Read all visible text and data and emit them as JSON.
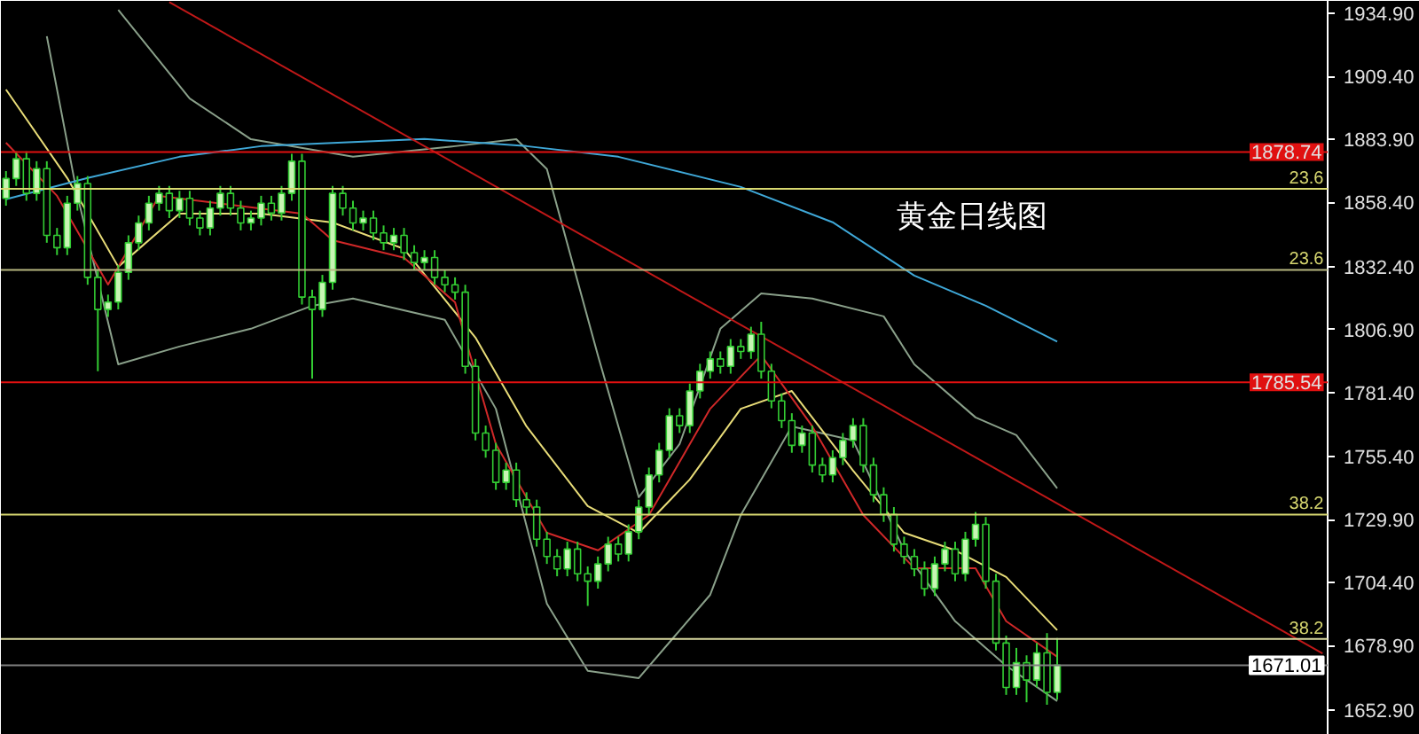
{
  "chart_data": {
    "type": "candlestick",
    "categories": [
      null,
      null,
      null,
      null,
      null,
      null,
      null,
      null,
      null,
      null,
      null,
      null,
      null,
      null,
      null,
      null,
      null,
      null,
      null,
      null,
      null,
      null,
      null,
      null,
      null,
      null,
      null,
      null,
      null,
      null,
      null,
      null,
      null,
      null,
      null,
      null,
      null,
      null,
      null,
      null,
      null,
      null,
      null,
      null,
      null,
      null,
      null,
      null,
      null,
      null,
      null,
      null,
      null,
      null,
      null,
      null,
      null,
      null,
      null,
      null,
      null,
      null,
      null,
      null,
      null,
      null,
      null,
      null,
      null,
      null,
      null,
      null,
      null,
      null,
      null,
      null,
      null,
      null,
      null,
      null,
      null,
      null,
      null,
      null,
      null,
      null,
      null,
      null,
      null,
      null,
      null,
      null,
      null,
      null,
      null,
      null,
      null,
      null,
      null,
      null,
      null,
      null,
      null,
      null,
      null,
      null,
      null,
      null,
      null,
      null,
      null,
      null,
      null,
      null,
      null,
      null,
      null,
      null,
      null,
      null,
      null,
      null,
      null,
      null,
      null,
      null,
      null,
      null,
      null,
      null
    ],
    "ohlc": [
      [
        1860,
        1871,
        1857,
        1868
      ],
      [
        1868,
        1879,
        1865,
        1876
      ],
      [
        1876,
        1879,
        1859,
        1862
      ],
      [
        1862,
        1875,
        1859,
        1872
      ],
      [
        1872,
        1875,
        1842,
        1845
      ],
      [
        1845,
        1848,
        1837,
        1840
      ],
      [
        1840,
        1861,
        1837,
        1858
      ],
      [
        1858,
        1869,
        1855,
        1866
      ],
      [
        1866,
        1869,
        1825,
        1828
      ],
      [
        1828,
        1831,
        1790,
        1815
      ],
      [
        1815,
        1821,
        1812,
        1818
      ],
      [
        1818,
        1833,
        1815,
        1830
      ],
      [
        1830,
        1845,
        1827,
        1842
      ],
      [
        1842,
        1853,
        1839,
        1850
      ],
      [
        1850,
        1861,
        1847,
        1858
      ],
      [
        1858,
        1865,
        1855,
        1862
      ],
      [
        1862,
        1865,
        1852,
        1855
      ],
      [
        1855,
        1863,
        1852,
        1860
      ],
      [
        1860,
        1863,
        1849,
        1852
      ],
      [
        1852,
        1855,
        1845,
        1848
      ],
      [
        1848,
        1859,
        1845,
        1856
      ],
      [
        1856,
        1865,
        1853,
        1862
      ],
      [
        1862,
        1865,
        1853,
        1856
      ],
      [
        1856,
        1859,
        1847,
        1850
      ],
      [
        1850,
        1855,
        1847,
        1852
      ],
      [
        1852,
        1861,
        1849,
        1858
      ],
      [
        1858,
        1861,
        1851,
        1854
      ],
      [
        1854,
        1865,
        1851,
        1862
      ],
      [
        1862,
        1878,
        1859,
        1875
      ],
      [
        1875,
        1878,
        1817,
        1820
      ],
      [
        1820,
        1823,
        1787,
        1815
      ],
      [
        1815,
        1829,
        1812,
        1826
      ],
      [
        1826,
        1865,
        1823,
        1862
      ],
      [
        1862,
        1865,
        1853,
        1856
      ],
      [
        1856,
        1859,
        1847,
        1850
      ],
      [
        1850,
        1855,
        1847,
        1852
      ],
      [
        1852,
        1855,
        1843,
        1846
      ],
      [
        1846,
        1849,
        1839,
        1842
      ],
      [
        1842,
        1848,
        1839,
        1845
      ],
      [
        1845,
        1848,
        1835,
        1838
      ],
      [
        1838,
        1841,
        1831,
        1834
      ],
      [
        1834,
        1839,
        1831,
        1836
      ],
      [
        1836,
        1839,
        1825,
        1828
      ],
      [
        1828,
        1831,
        1822,
        1825
      ],
      [
        1825,
        1828,
        1819,
        1822
      ],
      [
        1822,
        1825,
        1789,
        1792
      ],
      [
        1792,
        1795,
        1762,
        1765
      ],
      [
        1765,
        1768,
        1755,
        1758
      ],
      [
        1758,
        1761,
        1742,
        1745
      ],
      [
        1745,
        1753,
        1742,
        1750
      ],
      [
        1750,
        1753,
        1735,
        1738
      ],
      [
        1738,
        1741,
        1732,
        1735
      ],
      [
        1735,
        1738,
        1719,
        1722
      ],
      [
        1722,
        1725,
        1712,
        1715
      ],
      [
        1715,
        1718,
        1707,
        1710
      ],
      [
        1710,
        1721,
        1707,
        1718
      ],
      [
        1718,
        1721,
        1705,
        1708
      ],
      [
        1708,
        1711,
        1695,
        1705
      ],
      [
        1705,
        1715,
        1702,
        1712
      ],
      [
        1712,
        1723,
        1709,
        1720
      ],
      [
        1720,
        1723,
        1713,
        1716
      ],
      [
        1716,
        1728,
        1713,
        1725
      ],
      [
        1725,
        1738,
        1722,
        1735
      ],
      [
        1735,
        1751,
        1732,
        1748
      ],
      [
        1748,
        1761,
        1745,
        1758
      ],
      [
        1758,
        1775,
        1755,
        1772
      ],
      [
        1772,
        1775,
        1765,
        1768
      ],
      [
        1768,
        1785,
        1765,
        1782
      ],
      [
        1782,
        1793,
        1779,
        1790
      ],
      [
        1790,
        1798,
        1787,
        1795
      ],
      [
        1795,
        1798,
        1789,
        1792
      ],
      [
        1792,
        1803,
        1789,
        1800
      ],
      [
        1800,
        1803,
        1795,
        1798
      ],
      [
        1798,
        1808,
        1795,
        1805
      ],
      [
        1805,
        1810,
        1787,
        1790
      ],
      [
        1790,
        1793,
        1775,
        1778
      ],
      [
        1778,
        1781,
        1767,
        1770
      ],
      [
        1770,
        1773,
        1757,
        1760
      ],
      [
        1760,
        1768,
        1757,
        1765
      ],
      [
        1765,
        1768,
        1749,
        1752
      ],
      [
        1752,
        1755,
        1745,
        1748
      ],
      [
        1748,
        1758,
        1745,
        1755
      ],
      [
        1755,
        1765,
        1752,
        1762
      ],
      [
        1762,
        1771,
        1759,
        1768
      ],
      [
        1768,
        1771,
        1749,
        1752
      ],
      [
        1752,
        1755,
        1737,
        1740
      ],
      [
        1740,
        1743,
        1729,
        1732
      ],
      [
        1732,
        1735,
        1717,
        1720
      ],
      [
        1720,
        1723,
        1712,
        1715
      ],
      [
        1715,
        1718,
        1707,
        1710
      ],
      [
        1710,
        1713,
        1699,
        1702
      ],
      [
        1702,
        1715,
        1699,
        1712
      ],
      [
        1712,
        1721,
        1709,
        1718
      ],
      [
        1718,
        1721,
        1705,
        1708
      ],
      [
        1708,
        1725,
        1705,
        1722
      ],
      [
        1722,
        1733,
        1719,
        1728
      ],
      [
        1728,
        1731,
        1702,
        1705
      ],
      [
        1705,
        1708,
        1677,
        1680
      ],
      [
        1680,
        1683,
        1659,
        1662
      ],
      [
        1662,
        1678,
        1659,
        1672
      ],
      [
        1672,
        1675,
        1656,
        1665
      ],
      [
        1665,
        1680,
        1662,
        1676
      ],
      [
        1676,
        1684,
        1655,
        1660
      ],
      [
        1660,
        1682,
        1657,
        1671
      ],
      null,
      null,
      null,
      null,
      null,
      null,
      null,
      null,
      null,
      null,
      null,
      null,
      null,
      null,
      null,
      null,
      null,
      null,
      null,
      null,
      null,
      null,
      null,
      null,
      null,
      null
    ],
    "series": [
      {
        "type": "line",
        "color": "#8aa08a",
        "values": [
          null,
          null,
          null,
          null,
          null,
          null,
          null,
          null,
          null,
          null,
          null,
          1936.3,
          null,
          null,
          null,
          null,
          null,
          null,
          1900.4,
          null,
          null,
          null,
          null,
          null,
          1883.9,
          null,
          null,
          null,
          null,
          null,
          null,
          null,
          null,
          null,
          1876.8,
          null,
          null,
          null,
          null,
          null,
          null,
          null,
          null,
          null,
          1881.1,
          null,
          null,
          null,
          null,
          null,
          1883.9,
          null,
          null,
          1871.8,
          null,
          null,
          null,
          null,
          1796.4,
          null,
          null,
          null,
          1739.0,
          null,
          null,
          null,
          1760.5,
          null,
          null,
          null,
          1807.2,
          null,
          null,
          null,
          1821.5,
          null,
          null,
          null,
          null,
          1819.4,
          null,
          null,
          null,
          null,
          null,
          null,
          1812.2,
          null,
          null,
          1792.8,
          null,
          null,
          null,
          null,
          null,
          1771.3,
          null,
          null,
          null,
          1764.1,
          null,
          null,
          null,
          1742.6,
          null,
          null,
          null,
          null,
          null,
          null,
          null,
          null,
          null,
          null,
          null,
          null,
          null,
          null,
          null,
          null,
          null,
          null,
          null,
          null,
          null,
          null,
          null,
          null,
          null,
          null
        ]
      },
      {
        "type": "line",
        "color": "#8aa08a",
        "values": [
          null,
          null,
          null,
          null,
          1925.6,
          null,
          null,
          1861.0,
          null,
          null,
          null,
          1792.8,
          null,
          null,
          null,
          null,
          null,
          1800.0,
          null,
          null,
          null,
          null,
          null,
          null,
          1807.2,
          null,
          null,
          null,
          null,
          null,
          1816.5,
          null,
          null,
          null,
          1819.4,
          null,
          null,
          null,
          null,
          null,
          null,
          null,
          null,
          1810.8,
          null,
          null,
          null,
          null,
          1774.8,
          null,
          null,
          null,
          null,
          1695.9,
          null,
          null,
          null,
          1668.7,
          null,
          null,
          null,
          null,
          1665.8,
          null,
          null,
          null,
          null,
          null,
          null,
          1699.5,
          null,
          null,
          1731.8,
          null,
          null,
          null,
          null,
          1767.7,
          null,
          null,
          null,
          null,
          null,
          1762.0,
          null,
          null,
          null,
          null,
          1717.5,
          null,
          null,
          null,
          null,
          1688.8,
          null,
          null,
          null,
          null,
          1670.8,
          null,
          null,
          null,
          null,
          1656.5,
          null,
          null,
          null,
          null,
          null,
          null,
          null,
          null,
          null,
          null,
          null,
          null,
          null,
          null,
          null,
          null,
          null,
          null,
          null,
          null,
          null,
          null,
          null,
          null,
          null,
          null
        ]
      },
      {
        "type": "line",
        "color": "#e8dc78",
        "values": [
          1904.0,
          null,
          null,
          null,
          null,
          null,
          1868.2,
          null,
          null,
          null,
          null,
          1832.3,
          null,
          null,
          null,
          null,
          null,
          1853.8,
          null,
          null,
          null,
          null,
          null,
          null,
          null,
          1853.8,
          null,
          null,
          null,
          null,
          null,
          null,
          1850.2,
          null,
          null,
          null,
          null,
          null,
          null,
          1839.5,
          null,
          null,
          null,
          null,
          null,
          null,
          1803.6,
          null,
          null,
          null,
          null,
          1767.7,
          null,
          null,
          null,
          null,
          null,
          1735.4,
          null,
          null,
          null,
          null,
          1724.6,
          null,
          null,
          null,
          null,
          1746.2,
          null,
          null,
          null,
          null,
          1774.8,
          null,
          null,
          null,
          null,
          1782.0,
          null,
          null,
          null,
          null,
          null,
          1749.8,
          null,
          null,
          null,
          null,
          1724.6,
          null,
          null,
          null,
          null,
          1717.5,
          null,
          null,
          null,
          null,
          1706.7,
          null,
          null,
          null,
          null,
          1685.2,
          null,
          null,
          null,
          null,
          null,
          null,
          null,
          null,
          null,
          null,
          null,
          null,
          null,
          null,
          null,
          null,
          null,
          null,
          null,
          null,
          null,
          null,
          null,
          null,
          null,
          null
        ]
      },
      {
        "type": "line",
        "color": "#d02828",
        "values": [
          1882.5,
          null,
          null,
          null,
          null,
          1861.0,
          null,
          null,
          null,
          null,
          1825.1,
          null,
          null,
          null,
          null,
          1861.0,
          null,
          null,
          null,
          null,
          null,
          null,
          1857.4,
          null,
          null,
          null,
          null,
          null,
          null,
          1853.8,
          null,
          null,
          1843.0,
          null,
          null,
          null,
          null,
          null,
          null,
          1835.9,
          null,
          null,
          null,
          null,
          1817.9,
          null,
          null,
          null,
          1760.5,
          null,
          null,
          null,
          null,
          1724.6,
          null,
          null,
          null,
          null,
          1717.5,
          null,
          null,
          null,
          null,
          1731.8,
          null,
          null,
          null,
          null,
          null,
          1774.8,
          null,
          null,
          null,
          null,
          1796.4,
          null,
          null,
          null,
          null,
          1767.7,
          null,
          null,
          null,
          null,
          1731.8,
          null,
          null,
          null,
          null,
          1710.3,
          null,
          null,
          null,
          null,
          null,
          1710.3,
          null,
          null,
          1688.8,
          null,
          null,
          null,
          null,
          1674.4,
          null,
          null,
          null,
          null,
          null,
          null,
          null,
          null,
          null,
          null,
          null,
          null,
          null,
          null,
          null,
          null,
          null,
          null,
          null,
          null,
          null,
          null,
          null,
          null,
          null,
          null
        ]
      },
      {
        "type": "line",
        "color": "#3fa8d8",
        "values": [
          1859.6,
          null,
          null,
          null,
          null,
          null,
          null,
          null,
          1868.2,
          null,
          null,
          null,
          null,
          null,
          null,
          null,
          null,
          1876.8,
          null,
          null,
          null,
          null,
          null,
          null,
          null,
          1881.1,
          null,
          null,
          null,
          null,
          null,
          null,
          null,
          null,
          null,
          null,
          null,
          null,
          null,
          null,
          null,
          1884.0,
          null,
          null,
          null,
          null,
          null,
          null,
          null,
          null,
          null,
          1881.1,
          null,
          null,
          null,
          null,
          null,
          null,
          null,
          null,
          1876.8,
          null,
          null,
          null,
          null,
          null,
          null,
          null,
          null,
          null,
          null,
          null,
          1864.6,
          null,
          null,
          null,
          null,
          null,
          null,
          null,
          null,
          1850.3,
          null,
          null,
          null,
          null,
          null,
          null,
          null,
          1828.7,
          null,
          null,
          null,
          null,
          null,
          null,
          1816.5,
          null,
          null,
          null,
          null,
          null,
          null,
          1802.0,
          null,
          null,
          null,
          null,
          null,
          null,
          null,
          null,
          null,
          null,
          null,
          null,
          null,
          null,
          null,
          null,
          null,
          null,
          null,
          null,
          null,
          null,
          null,
          null,
          null,
          null
        ]
      },
      {
        "type": "line",
        "color": "#c01818",
        "values": [
          null,
          null,
          null,
          null,
          null,
          null,
          null,
          null,
          null,
          null,
          null,
          null,
          null,
          null,
          null,
          null,
          1939.4,
          null,
          null,
          null,
          null,
          null,
          null,
          null,
          null,
          null,
          null,
          null,
          null,
          null,
          null,
          null,
          null,
          null,
          null,
          null,
          null,
          null,
          null,
          null,
          null,
          null,
          null,
          null,
          null,
          null,
          null,
          null,
          null,
          null,
          null,
          null,
          null,
          null,
          null,
          null,
          null,
          null,
          null,
          null,
          null,
          null,
          null,
          null,
          null,
          null,
          null,
          null,
          null,
          null,
          null,
          null,
          null,
          null,
          null,
          null,
          null,
          null,
          null,
          null,
          null,
          null,
          null,
          null,
          null,
          null,
          null,
          null,
          null,
          null,
          null,
          null,
          null,
          null,
          null,
          null,
          null,
          null,
          null,
          null,
          null,
          null,
          null,
          null,
          null,
          null,
          null,
          null,
          null,
          null,
          null,
          null,
          null,
          null,
          null,
          null,
          null,
          null,
          null,
          null,
          null,
          null,
          null,
          null,
          null,
          null,
          null,
          null,
          null,
          1675.8
        ]
      }
    ],
    "ylim": [
      1642.8,
      1939.9
    ],
    "yticks": [
      {
        "value": 1934.9,
        "label": "1934.90"
      },
      {
        "value": 1909.4,
        "label": "1909.40"
      },
      {
        "value": 1883.9,
        "label": "1883.90"
      },
      {
        "value": 1858.4,
        "label": "1858.40"
      },
      {
        "value": 1832.4,
        "label": "1832.40"
      },
      {
        "value": 1806.9,
        "label": "1806.90"
      },
      {
        "value": 1781.4,
        "label": "1781.40"
      },
      {
        "value": 1755.4,
        "label": "1755.40"
      },
      {
        "value": 1729.9,
        "label": "1729.90"
      },
      {
        "value": 1704.4,
        "label": "1704.40"
      },
      {
        "value": 1678.9,
        "label": "1678.90"
      },
      {
        "value": 1652.9,
        "label": "1652.90"
      }
    ],
    "ref_lines": [
      {
        "axis": "y",
        "value": 1878.74,
        "label": "1878.74",
        "color": "#e01010"
      },
      {
        "axis": "y",
        "value": 1863.8,
        "color": "#d8d870"
      },
      {
        "axis": "y",
        "value": 1831.0,
        "color": "#b8b880"
      },
      {
        "axis": "y",
        "value": 1785.54,
        "label": "1785.54",
        "color": "#e01010"
      },
      {
        "axis": "y",
        "value": 1732.0,
        "color": "#d8d870"
      },
      {
        "axis": "y",
        "value": 1681.6,
        "color": "#d8d8a0"
      },
      {
        "axis": "y",
        "value": 1671.01,
        "label": "1671.01",
        "color": "#808080"
      }
    ],
    "annotations": [
      "黄金日线图",
      {
        "text": "23.6",
        "y": 1863.8
      },
      {
        "text": "23.6",
        "y": 1831.0
      },
      {
        "text": "38.2",
        "y": 1732.0
      },
      {
        "text": "38.2",
        "y": 1681.6
      }
    ],
    "tick_labels": "y",
    "grid": false
  }
}
